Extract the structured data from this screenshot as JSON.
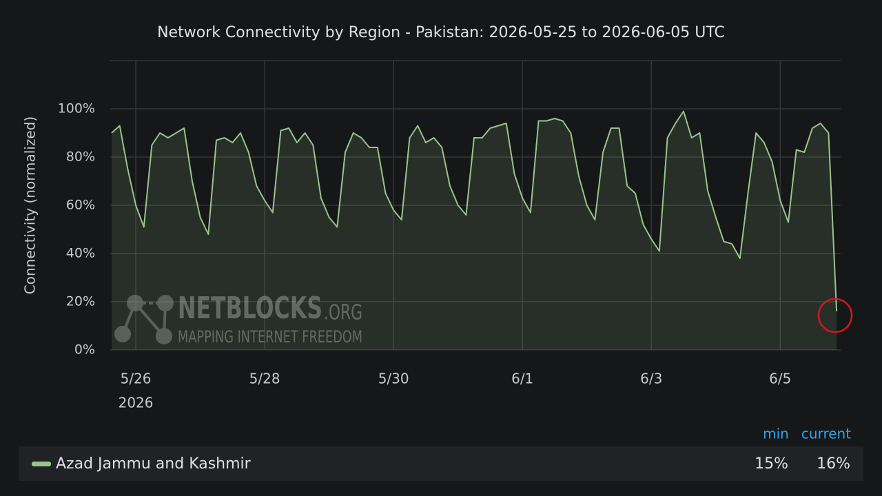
{
  "chart_data": {
    "type": "line",
    "title": "Network Connectivity by Region - Pakistan: 2026-05-25 to 2026-06-05 UTC",
    "y_label": "Connectivity (normalized)",
    "x_year_label": "2026",
    "categories": [
      null,
      null,
      null,
      "5/26",
      null,
      null,
      null,
      null,
      null,
      null,
      null,
      null,
      null,
      null,
      null,
      null,
      null,
      null,
      null,
      "5/28",
      null,
      null,
      null,
      null,
      null,
      null,
      null,
      null,
      null,
      null,
      null,
      null,
      null,
      null,
      null,
      "5/30",
      null,
      null,
      null,
      null,
      null,
      null,
      null,
      null,
      null,
      null,
      null,
      null,
      null,
      null,
      null,
      "6/1",
      null,
      null,
      null,
      null,
      null,
      null,
      null,
      null,
      null,
      null,
      null,
      null,
      null,
      null,
      null,
      "6/3",
      null,
      null,
      null,
      null,
      null,
      null,
      null,
      null,
      null,
      null,
      null,
      null,
      null,
      null,
      null,
      "6/5",
      null,
      null,
      null,
      null,
      null,
      null,
      null
    ],
    "series": [
      {
        "name": "Azad Jammu and Kashmir",
        "color": "#9ac48a",
        "values": [
          90,
          93,
          75,
          60,
          51,
          85,
          90,
          88,
          90,
          92,
          70,
          55,
          48,
          87,
          88,
          86,
          90,
          82,
          68,
          62,
          57,
          91,
          92,
          86,
          90,
          85,
          63,
          55,
          51,
          82,
          90,
          88,
          84,
          84,
          65,
          58,
          54,
          88,
          93,
          86,
          88,
          84,
          68,
          60,
          56,
          88,
          88,
          92,
          93,
          94,
          73,
          63,
          57,
          95,
          95,
          96,
          95,
          90,
          72,
          60,
          54,
          82,
          92,
          92,
          68,
          65,
          52,
          46,
          41,
          88,
          94,
          99,
          88,
          90,
          66,
          55,
          45,
          44,
          38,
          65,
          90,
          86,
          78,
          62,
          53,
          83,
          82,
          92,
          94,
          90,
          16
        ]
      }
    ],
    "ylim": [
      0,
      120
    ],
    "yticks": [
      {
        "value": 0,
        "label": "0%"
      },
      {
        "value": 20,
        "label": "20%"
      },
      {
        "value": 40,
        "label": "40%"
      },
      {
        "value": 60,
        "label": "60%"
      },
      {
        "value": 80,
        "label": "80%"
      },
      {
        "value": 100,
        "label": "100%"
      }
    ],
    "grid": true,
    "legend_headers": [
      "min",
      "current"
    ],
    "legend_stats": [
      "15%",
      "16%"
    ],
    "watermark": {
      "brand": "NETBLOCKS",
      "suffix": ".ORG",
      "tagline": "MAPPING INTERNET FREEDOM"
    }
  }
}
